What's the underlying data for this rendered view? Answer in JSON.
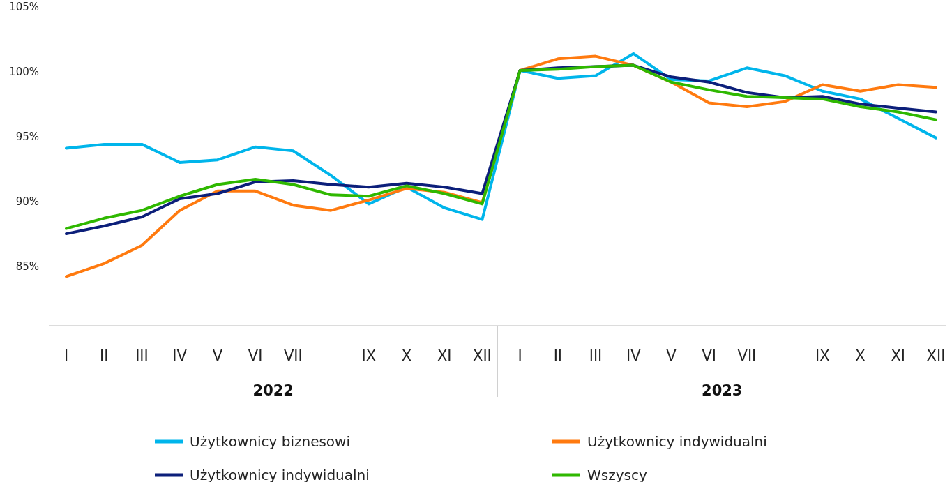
{
  "chart_data": {
    "type": "line",
    "categories": [
      "I",
      "II",
      "III",
      "IV",
      "V",
      "VI",
      "VII",
      null,
      "IX",
      "X",
      "XI",
      "XII",
      "I",
      "II",
      "III",
      "IV",
      "V",
      "VI",
      "VII",
      null,
      "IX",
      "X",
      "XI",
      "XII"
    ],
    "series": [
      {
        "name": "Użytkownicy biznesowi",
        "color": "#00b5eb",
        "values": [
          94.1,
          94.4,
          94.4,
          93.0,
          93.2,
          94.2,
          93.9,
          92.0,
          89.8,
          91.1,
          89.5,
          88.6,
          100.1,
          99.5,
          99.7,
          101.4,
          99.4,
          99.3,
          100.3,
          99.7,
          98.5,
          97.9,
          96.4,
          94.9
        ]
      },
      {
        "name": "Użytkownicy indywidualni",
        "color": "#ff7a0f",
        "values": [
          84.2,
          85.2,
          86.6,
          89.3,
          90.8,
          90.8,
          89.7,
          89.3,
          90.1,
          91.0,
          90.7,
          89.9,
          100.1,
          101.0,
          101.2,
          100.5,
          99.2,
          97.6,
          97.3,
          97.7,
          99.0,
          98.5,
          99.0,
          98.8
        ]
      },
      {
        "name": "Użytkownicy indywidualni",
        "color": "#0c1f7a",
        "values": [
          87.5,
          88.1,
          88.8,
          90.2,
          90.6,
          91.5,
          91.6,
          91.3,
          91.1,
          91.4,
          91.1,
          90.6,
          100.1,
          100.3,
          100.4,
          100.5,
          99.6,
          99.2,
          98.4,
          98.0,
          98.1,
          97.5,
          97.2,
          96.9
        ]
      },
      {
        "name": "Wszyscy",
        "color": "#2fb800",
        "values": [
          87.9,
          88.7,
          89.3,
          90.4,
          91.3,
          91.7,
          91.3,
          90.5,
          90.4,
          91.2,
          90.6,
          89.8,
          100.1,
          100.2,
          100.4,
          100.5,
          99.2,
          98.6,
          98.1,
          98.0,
          97.9,
          97.3,
          96.9,
          96.3
        ]
      }
    ],
    "ylim": [
      80.4,
      105
    ],
    "yticks": [
      {
        "value": 85,
        "label": "85%"
      },
      {
        "value": 90,
        "label": "90%"
      },
      {
        "value": 95,
        "label": "95%"
      },
      {
        "value": 100,
        "label": "100%"
      },
      {
        "value": 105,
        "label": "105%"
      }
    ],
    "annotations": [
      "2022",
      "2023"
    ],
    "grid": false,
    "legend": "bottom",
    "marker": "none",
    "line_style": "solid"
  }
}
